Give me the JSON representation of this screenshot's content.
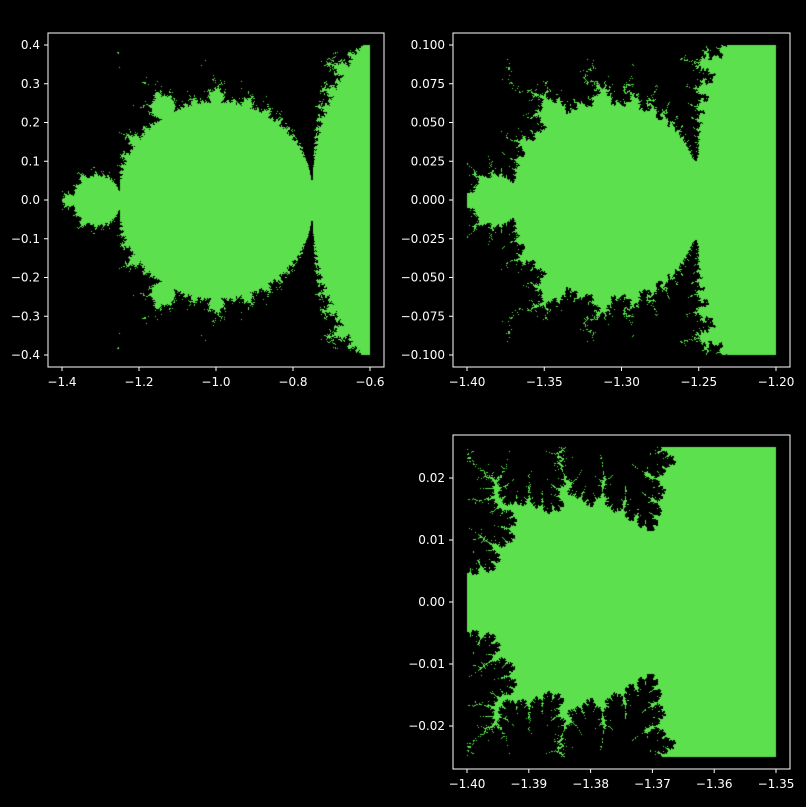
{
  "figure": {
    "background": "#000000",
    "fill_color": "#5ce04e",
    "axis_color": "#ffffff"
  },
  "chart_data": [
    {
      "type": "heatmap",
      "title": "",
      "xlabel": "",
      "ylabel": "",
      "xlim": [
        -1.4,
        -0.6
      ],
      "ylim": [
        -0.4,
        0.4
      ],
      "x_ticks": [
        -1.4,
        -1.2,
        -1.0,
        -0.8,
        -0.6
      ],
      "x_tick_labels": [
        "−1.4",
        "−1.2",
        "−1.0",
        "−0.8",
        "−0.6"
      ],
      "y_ticks": [
        0.4,
        0.3,
        0.2,
        0.1,
        0.0,
        -0.1,
        -0.2,
        -0.3,
        -0.4
      ],
      "y_tick_labels": [
        "0.4",
        "0.3",
        "0.2",
        "0.1",
        "0.0",
        "−0.1",
        "−0.2",
        "−0.3",
        "−0.4"
      ],
      "grid": false,
      "content": "Mandelbrot set region (points inside the set filled green)"
    },
    {
      "type": "heatmap",
      "title": "",
      "xlabel": "",
      "ylabel": "",
      "xlim": [
        -1.4,
        -1.2
      ],
      "ylim": [
        -0.1,
        0.1
      ],
      "x_ticks": [
        -1.4,
        -1.35,
        -1.3,
        -1.25,
        -1.2
      ],
      "x_tick_labels": [
        "−1.40",
        "−1.35",
        "−1.30",
        "−1.25",
        "−1.20"
      ],
      "y_ticks": [
        0.1,
        0.075,
        0.05,
        0.025,
        0.0,
        -0.025,
        -0.05,
        -0.075,
        -0.1
      ],
      "y_tick_labels": [
        "0.100",
        "0.075",
        "0.050",
        "0.025",
        "0.000",
        "−0.025",
        "−0.050",
        "−0.075",
        "−0.100"
      ],
      "grid": false,
      "content": "Mandelbrot set region (points inside the set filled green)"
    },
    {
      "type": "heatmap",
      "title": "",
      "xlabel": "",
      "ylabel": "",
      "xlim": [
        -1.4,
        -1.35
      ],
      "ylim": [
        -0.025,
        0.025
      ],
      "x_ticks": [
        -1.4,
        -1.39,
        -1.38,
        -1.37,
        -1.36,
        -1.35
      ],
      "x_tick_labels": [
        "−1.40",
        "−1.39",
        "−1.38",
        "−1.37",
        "−1.36",
        "−1.35"
      ],
      "y_ticks": [
        0.02,
        0.01,
        0.0,
        -0.01,
        -0.02
      ],
      "y_tick_labels": [
        "0.02",
        "0.01",
        "0.00",
        "−0.01",
        "−0.02"
      ],
      "grid": false,
      "content": "Mandelbrot set region (points inside the set filled green)"
    }
  ]
}
